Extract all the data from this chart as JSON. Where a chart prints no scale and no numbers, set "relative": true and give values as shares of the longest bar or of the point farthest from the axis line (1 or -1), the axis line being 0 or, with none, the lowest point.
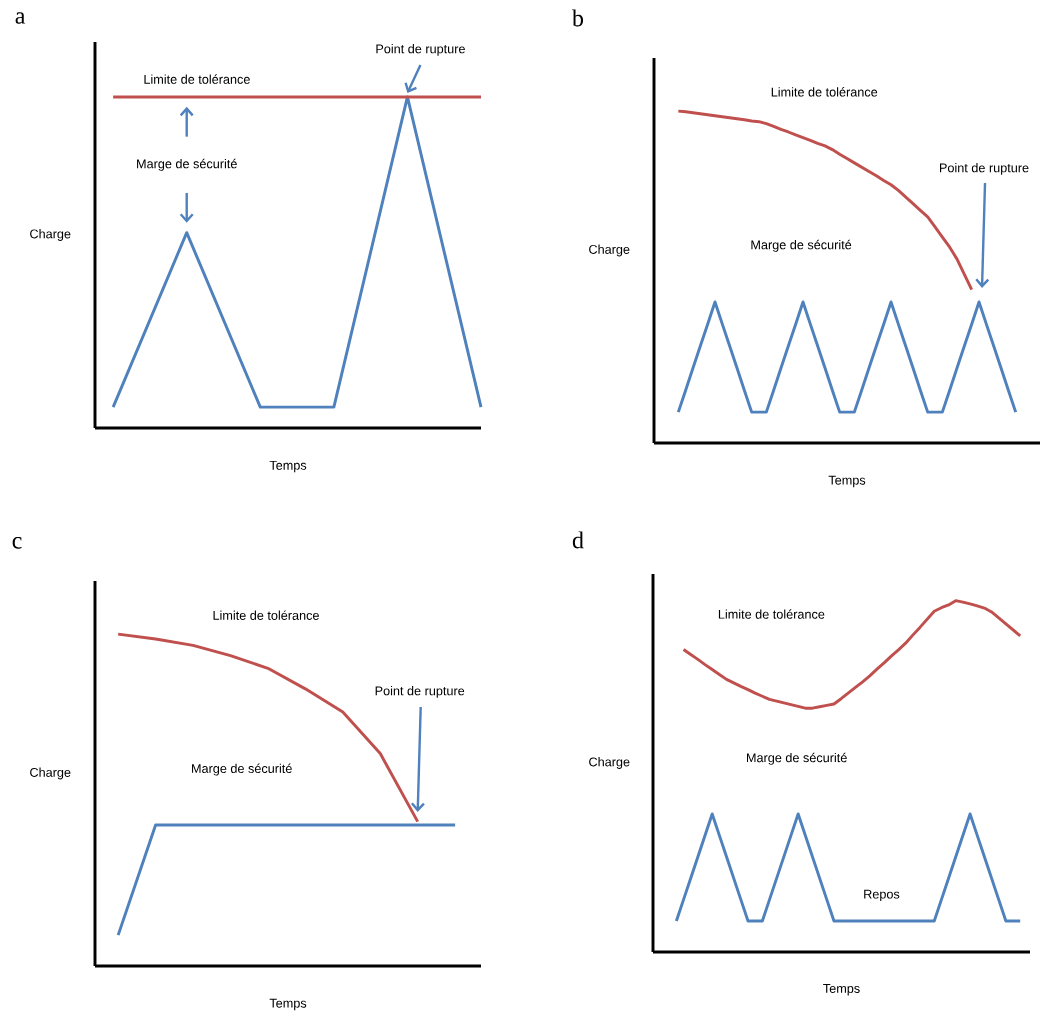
{
  "chart_data": [
    {
      "type": "line",
      "title": "a",
      "xlabel": "Temps",
      "ylabel": "Charge",
      "relative": true,
      "categories": [
        null,
        null,
        null,
        null,
        null,
        null
      ],
      "series": [
        {
          "color": "#4f81bd",
          "values": [
            0.063,
            0.59,
            0.063,
            0.063,
            1.0,
            0.063
          ]
        },
        {
          "name": "Limite de tolérance",
          "color": "#c0504d",
          "values": [
            1.0,
            1.0,
            1.0,
            1.0,
            1.0,
            1.0
          ]
        }
      ],
      "annotations": [
        "Marge de sécurité",
        "Point de rupture"
      ]
    },
    {
      "type": "line",
      "title": "b",
      "xlabel": "Temps",
      "ylabel": "Charge",
      "relative": true,
      "categories": [
        null,
        null,
        null,
        null,
        null,
        null,
        null,
        null,
        null,
        null,
        null,
        null,
        null,
        null,
        null,
        null,
        null,
        null,
        null,
        null,
        null,
        null,
        null,
        null,
        null,
        null,
        null,
        null,
        null,
        null,
        null,
        null,
        null,
        null,
        null,
        null,
        null,
        null,
        null,
        null,
        null,
        null,
        null,
        null,
        null,
        null,
        null
      ],
      "series": [
        {
          "color": "#4f81bd",
          "values": [
            0.093,
            0.159,
            0.226,
            0.292,
            0.358,
            0.425,
            0.358,
            0.292,
            0.226,
            0.159,
            0.093,
            0.093,
            0.093,
            0.159,
            0.226,
            0.292,
            0.358,
            0.425,
            0.358,
            0.292,
            0.226,
            0.159,
            0.093,
            0.093,
            0.093,
            0.159,
            0.226,
            0.292,
            0.358,
            0.425,
            0.358,
            0.292,
            0.226,
            0.159,
            0.093,
            0.093,
            0.093,
            0.159,
            0.226,
            0.292,
            0.358,
            0.425,
            0.358,
            0.292,
            0.226,
            0.159,
            0.093
          ]
        },
        {
          "name": "Limite de tolérance",
          "color": "#c0504d",
          "values": [
            1.0,
            0.998,
            0.995,
            0.992,
            0.989,
            0.986,
            0.983,
            0.98,
            0.977,
            0.974,
            0.97,
            0.968,
            0.962,
            0.954,
            0.945,
            0.937,
            0.928,
            0.92,
            0.912,
            0.903,
            0.895,
            0.884,
            0.87,
            0.857,
            0.844,
            0.831,
            0.818,
            0.805,
            0.791,
            0.778,
            0.761,
            0.741,
            0.721,
            0.701,
            0.681,
            0.651,
            0.62,
            0.59,
            0.554,
            0.508,
            0.462,
            null,
            null,
            null,
            null,
            null,
            null
          ]
        }
      ],
      "annotations": [
        "Marge de sécurité",
        "Point de rupture"
      ]
    },
    {
      "type": "line",
      "title": "c",
      "xlabel": "Temps",
      "ylabel": "Charge",
      "relative": true,
      "categories": [
        null,
        null,
        null,
        null,
        null,
        null,
        null,
        null,
        null,
        null
      ],
      "series": [
        {
          "color": "#4f81bd",
          "values": [
            0.093,
            0.425,
            0.425,
            0.425,
            0.425,
            0.425,
            0.425,
            0.425,
            0.425,
            0.425
          ]
        },
        {
          "name": "Limite de tolérance",
          "color": "#c0504d",
          "values": [
            1.0,
            0.985,
            0.966,
            0.935,
            0.897,
            0.835,
            0.765,
            0.64,
            0.435,
            null
          ]
        }
      ],
      "annotations": [
        "Marge de sécurité",
        "Point de rupture"
      ]
    },
    {
      "type": "line",
      "title": "d",
      "xlabel": "Temps",
      "ylabel": "Charge",
      "relative": true,
      "categories": [
        null,
        null,
        null,
        null,
        null,
        null,
        null,
        null,
        null,
        null,
        null,
        null,
        null,
        null,
        null,
        null,
        null,
        null,
        null,
        null,
        null,
        null,
        null,
        null,
        null,
        null,
        null,
        null,
        null,
        null,
        null,
        null,
        null,
        null,
        null,
        null,
        null,
        null,
        null,
        null,
        null,
        null,
        null,
        null,
        null,
        null,
        null,
        null,
        null
      ],
      "series": [
        {
          "color": "#4f81bd",
          "values": [
            0.088,
            0.149,
            0.21,
            0.271,
            0.332,
            0.393,
            0.332,
            0.271,
            0.21,
            0.149,
            0.088,
            0.088,
            0.088,
            0.149,
            0.21,
            0.271,
            0.332,
            0.393,
            0.332,
            0.271,
            0.21,
            0.149,
            0.088,
            0.088,
            0.088,
            0.088,
            0.088,
            0.088,
            0.088,
            0.088,
            0.088,
            0.088,
            0.088,
            0.088,
            0.088,
            0.088,
            0.088,
            0.149,
            0.21,
            0.271,
            0.332,
            0.393,
            0.332,
            0.271,
            0.21,
            0.149,
            0.088,
            0.088,
            0.088
          ]
        },
        {
          "name": "Limite de tolérance",
          "color": "#c0504d",
          "values": [
            null,
            0.861,
            0.847,
            0.833,
            0.818,
            0.804,
            0.79,
            0.776,
            0.766,
            0.756,
            0.747,
            0.737,
            0.728,
            0.719,
            0.714,
            0.709,
            0.704,
            0.699,
            0.694,
            0.694,
            0.698,
            0.702,
            0.706,
            0.721,
            0.737,
            0.753,
            0.769,
            0.786,
            0.805,
            0.823,
            0.842,
            0.86,
            0.879,
            0.902,
            0.924,
            0.947,
            0.97,
            0.98,
            0.988,
            1.0,
            0.996,
            0.991,
            0.985,
            0.979,
            0.968,
            0.951,
            0.934,
            0.917,
            0.9
          ]
        }
      ],
      "annotations": [
        "Marge de sécurité",
        "Repos"
      ]
    }
  ]
}
